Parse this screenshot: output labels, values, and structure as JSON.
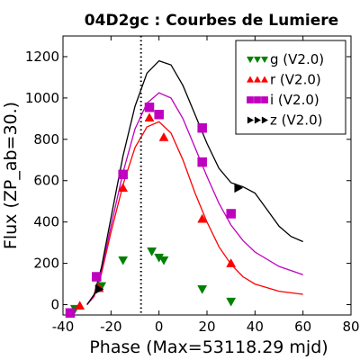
{
  "chart_data": {
    "type": "scatter",
    "title": "04D2gc : Courbes de Lumiere",
    "xlabel": "Phase (Max=53118.29 mjd)",
    "ylabel": "Flux (ZP_ab=30.)",
    "xlim": [
      -40,
      80
    ],
    "ylim": [
      -50,
      1300
    ],
    "xticks": [
      -40,
      -20,
      0,
      20,
      40,
      60,
      80
    ],
    "yticks": [
      0,
      200,
      400,
      600,
      800,
      1000,
      1200
    ],
    "max_phase_line": -7.5,
    "legend_position": "top-right",
    "grid": false,
    "series": [
      {
        "name": "g (V2.0)",
        "color": "#008000",
        "marker": "triangle-down",
        "points": [
          {
            "x": -35,
            "y": -20
          },
          {
            "x": -24,
            "y": 90
          },
          {
            "x": -15,
            "y": 215
          },
          {
            "x": -3,
            "y": 258
          },
          {
            "x": 0,
            "y": 228
          },
          {
            "x": 2,
            "y": 215
          },
          {
            "x": 18,
            "y": 75
          },
          {
            "x": 30,
            "y": 15
          }
        ],
        "model": []
      },
      {
        "name": "r (V2.0)",
        "color": "#ff0000",
        "marker": "triangle-up",
        "points": [
          {
            "x": -33,
            "y": -5
          },
          {
            "x": -25,
            "y": 80
          },
          {
            "x": -15,
            "y": 565
          },
          {
            "x": -4,
            "y": 905
          },
          {
            "x": 2,
            "y": 810
          },
          {
            "x": 18,
            "y": 415
          },
          {
            "x": 30,
            "y": 200
          }
        ],
        "model": [
          {
            "x": -30,
            "y": 0
          },
          {
            "x": -27,
            "y": 40
          },
          {
            "x": -24,
            "y": 150
          },
          {
            "x": -20,
            "y": 350
          },
          {
            "x": -15,
            "y": 580
          },
          {
            "x": -10,
            "y": 760
          },
          {
            "x": -5,
            "y": 860
          },
          {
            "x": 0,
            "y": 885
          },
          {
            "x": 5,
            "y": 830
          },
          {
            "x": 10,
            "y": 700
          },
          {
            "x": 15,
            "y": 540
          },
          {
            "x": 20,
            "y": 400
          },
          {
            "x": 25,
            "y": 280
          },
          {
            "x": 30,
            "y": 195
          },
          {
            "x": 35,
            "y": 135
          },
          {
            "x": 40,
            "y": 100
          },
          {
            "x": 50,
            "y": 65
          },
          {
            "x": 60,
            "y": 50
          }
        ]
      },
      {
        "name": "i (V2.0)",
        "color": "#bf00bf",
        "marker": "square",
        "points": [
          {
            "x": -37,
            "y": -40
          },
          {
            "x": -26,
            "y": 135
          },
          {
            "x": -15,
            "y": 630
          },
          {
            "x": -4,
            "y": 955
          },
          {
            "x": 0,
            "y": 920
          },
          {
            "x": 18,
            "y": 855
          },
          {
            "x": 18,
            "y": 690
          },
          {
            "x": 30,
            "y": 440
          }
        ],
        "model": [
          {
            "x": -30,
            "y": 0
          },
          {
            "x": -27,
            "y": 45
          },
          {
            "x": -24,
            "y": 165
          },
          {
            "x": -20,
            "y": 380
          },
          {
            "x": -15,
            "y": 640
          },
          {
            "x": -10,
            "y": 850
          },
          {
            "x": -5,
            "y": 975
          },
          {
            "x": 0,
            "y": 1025
          },
          {
            "x": 5,
            "y": 1000
          },
          {
            "x": 10,
            "y": 900
          },
          {
            "x": 15,
            "y": 760
          },
          {
            "x": 20,
            "y": 620
          },
          {
            "x": 25,
            "y": 490
          },
          {
            "x": 30,
            "y": 385
          },
          {
            "x": 35,
            "y": 310
          },
          {
            "x": 40,
            "y": 255
          },
          {
            "x": 50,
            "y": 185
          },
          {
            "x": 60,
            "y": 145
          }
        ]
      },
      {
        "name": "z (V2.0)",
        "color": "#000000",
        "marker": "triangle-right",
        "points": [
          {
            "x": -25,
            "y": 75
          },
          {
            "x": 33,
            "y": 565
          }
        ],
        "model": [
          {
            "x": -30,
            "y": 0
          },
          {
            "x": -27,
            "y": 50
          },
          {
            "x": -24,
            "y": 180
          },
          {
            "x": -20,
            "y": 420
          },
          {
            "x": -15,
            "y": 720
          },
          {
            "x": -10,
            "y": 960
          },
          {
            "x": -5,
            "y": 1120
          },
          {
            "x": 0,
            "y": 1180
          },
          {
            "x": 5,
            "y": 1160
          },
          {
            "x": 10,
            "y": 1060
          },
          {
            "x": 15,
            "y": 920
          },
          {
            "x": 20,
            "y": 780
          },
          {
            "x": 25,
            "y": 660
          },
          {
            "x": 30,
            "y": 590
          },
          {
            "x": 35,
            "y": 570
          },
          {
            "x": 40,
            "y": 540
          },
          {
            "x": 45,
            "y": 460
          },
          {
            "x": 50,
            "y": 380
          },
          {
            "x": 55,
            "y": 330
          },
          {
            "x": 60,
            "y": 305
          }
        ]
      }
    ]
  }
}
